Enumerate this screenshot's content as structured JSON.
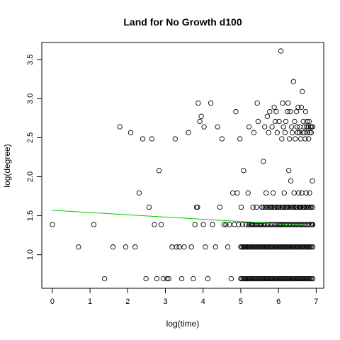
{
  "chart_data": {
    "type": "scatter",
    "title": "Land for No Growth d100",
    "xlabel": "log(time)",
    "ylabel": "log(degree)",
    "xlim": [
      -0.28,
      7.2
    ],
    "ylim": [
      0.57,
      3.72
    ],
    "x_ticks": [
      0,
      1,
      2,
      3,
      4,
      5,
      6,
      7
    ],
    "y_ticks": [
      1.0,
      1.5,
      2.0,
      2.5,
      3.0,
      3.5
    ],
    "y_tick_labels": [
      "1.0",
      "1.5",
      "2.0",
      "2.5",
      "3.0",
      "3.5"
    ],
    "point_style": "open-circle",
    "point_color": "#000000",
    "grid": false,
    "trend_line": {
      "color": "#00cc00",
      "x": [
        0,
        6.91
      ],
      "y": [
        1.57,
        1.37
      ]
    },
    "series": [
      {
        "points": [
          [
            0.0,
            1.386
          ],
          [
            0.693,
            1.099
          ],
          [
            1.099,
            1.386
          ],
          [
            1.386,
            0.693
          ],
          [
            1.609,
            1.099
          ],
          [
            1.792,
            2.639
          ],
          [
            1.946,
            1.099
          ],
          [
            2.079,
            2.565
          ],
          [
            2.197,
            1.099
          ],
          [
            2.303,
            1.792
          ],
          [
            2.398,
            2.485
          ],
          [
            2.485,
            0.693
          ],
          [
            2.565,
            1.609
          ],
          [
            2.639,
            2.485
          ],
          [
            2.708,
            1.386
          ],
          [
            2.773,
            0.693
          ],
          [
            2.833,
            2.079
          ],
          [
            2.89,
            1.386
          ],
          [
            2.944,
            0.693
          ],
          [
            3.045,
            0.693
          ],
          [
            3.091,
            0.693
          ],
          [
            3.178,
            1.099
          ],
          [
            3.258,
            2.485
          ],
          [
            3.296,
            1.099
          ],
          [
            3.367,
            1.099
          ],
          [
            3.434,
            0.693
          ],
          [
            3.497,
            1.099
          ],
          [
            3.611,
            2.565
          ],
          [
            3.689,
            1.099
          ],
          [
            3.738,
            0.693
          ],
          [
            3.784,
            1.386
          ],
          [
            3.829,
            1.609
          ],
          [
            3.85,
            1.609
          ],
          [
            3.871,
            2.944
          ],
          [
            3.912,
            2.708
          ],
          [
            3.951,
            2.773
          ],
          [
            4.007,
            1.386
          ],
          [
            4.025,
            2.639
          ],
          [
            4.06,
            1.099
          ],
          [
            4.127,
            0.693
          ],
          [
            4.205,
            2.944
          ],
          [
            4.248,
            1.386
          ],
          [
            4.331,
            1.099
          ],
          [
            4.382,
            2.639
          ],
          [
            4.443,
            1.609
          ],
          [
            4.5,
            2.485
          ],
          [
            4.554,
            1.386
          ],
          [
            4.605,
            1.386
          ],
          [
            4.654,
            1.099
          ],
          [
            4.7,
            1.386
          ],
          [
            4.745,
            0.693
          ],
          [
            4.787,
            1.792
          ],
          [
            4.828,
            1.386
          ],
          [
            4.868,
            2.833
          ],
          [
            4.905,
            1.792
          ],
          [
            4.942,
            1.386
          ],
          [
            4.977,
            2.485
          ],
          [
            5.011,
            1.609
          ],
          [
            5.043,
            1.386
          ],
          [
            5.075,
            2.079
          ],
          [
            5.106,
            1.099
          ],
          [
            5.136,
            1.386
          ],
          [
            5.193,
            1.792
          ],
          [
            5.22,
            2.639
          ],
          [
            5.298,
            1.386
          ],
          [
            5.323,
            1.609
          ],
          [
            5.347,
            2.565
          ],
          [
            5.416,
            1.609
          ],
          [
            5.438,
            2.944
          ],
          [
            5.46,
            2.708
          ],
          [
            5.521,
            1.386
          ],
          [
            5.561,
            1.609
          ],
          [
            5.598,
            2.197
          ],
          [
            5.635,
            2.639
          ],
          [
            5.67,
            1.792
          ],
          [
            5.704,
            2.773
          ],
          [
            5.737,
            2.565
          ],
          [
            5.768,
            2.833
          ],
          [
            5.799,
            1.609
          ],
          [
            5.829,
            2.639
          ],
          [
            5.858,
            1.792
          ],
          [
            5.886,
            2.89
          ],
          [
            5.914,
            2.708
          ],
          [
            5.94,
            2.833
          ],
          [
            5.966,
            2.565
          ],
          [
            5.991,
            1.609
          ],
          [
            6.016,
            2.708
          ],
          [
            6.04,
            1.386
          ],
          [
            6.064,
            3.611
          ],
          [
            6.087,
            2.485
          ],
          [
            6.109,
            2.944
          ],
          [
            6.131,
            2.639
          ],
          [
            6.153,
            1.792
          ],
          [
            6.174,
            2.565
          ],
          [
            6.194,
            2.708
          ],
          [
            6.215,
            1.609
          ],
          [
            6.234,
            2.833
          ],
          [
            6.254,
            2.944
          ],
          [
            6.273,
            2.079
          ],
          [
            6.292,
            2.485
          ],
          [
            6.31,
            2.833
          ],
          [
            6.328,
            1.946
          ],
          [
            6.346,
            2.639
          ],
          [
            6.363,
            2.565
          ],
          [
            6.38,
            1.609
          ],
          [
            6.397,
            3.219
          ],
          [
            6.413,
            1.792
          ],
          [
            6.43,
            2.708
          ],
          [
            6.446,
            2.485
          ],
          [
            6.461,
            1.609
          ],
          [
            6.477,
            2.833
          ],
          [
            6.492,
            2.639
          ],
          [
            6.507,
            2.565
          ],
          [
            6.522,
            2.89
          ],
          [
            6.536,
            1.792
          ],
          [
            6.551,
            2.565
          ],
          [
            6.565,
            2.639
          ],
          [
            6.579,
            1.609
          ],
          [
            6.592,
            2.485
          ],
          [
            6.606,
            2.89
          ],
          [
            6.619,
            1.792
          ],
          [
            6.633,
            3.091
          ],
          [
            6.646,
            2.565
          ],
          [
            6.659,
            2.708
          ],
          [
            6.671,
            1.609
          ],
          [
            6.684,
            2.639
          ],
          [
            6.696,
            2.565
          ],
          [
            6.708,
            2.485
          ],
          [
            6.721,
            2.833
          ],
          [
            6.733,
            1.792
          ],
          [
            6.745,
            2.639
          ],
          [
            6.757,
            2.708
          ],
          [
            6.768,
            2.565
          ],
          [
            6.78,
            1.609
          ],
          [
            6.791,
            2.639
          ],
          [
            6.802,
            2.485
          ],
          [
            6.813,
            2.708
          ],
          [
            6.824,
            1.792
          ],
          [
            6.835,
            2.565
          ],
          [
            6.846,
            2.639
          ],
          [
            6.857,
            1.609
          ],
          [
            6.868,
            2.565
          ],
          [
            6.878,
            2.639
          ],
          [
            6.889,
            1.386
          ],
          [
            6.9,
            1.946
          ],
          [
            6.905,
            2.639
          ]
        ],
        "dense_rows": [
          {
            "y": 0.693,
            "x_range": [
              5.0,
              6.91
            ],
            "count": 60
          },
          {
            "y": 1.099,
            "x_range": [
              5.0,
              6.91
            ],
            "count": 60
          },
          {
            "y": 1.386,
            "x_range": [
              5.2,
              6.91
            ],
            "count": 45
          },
          {
            "y": 1.609,
            "x_range": [
              5.6,
              6.91
            ],
            "count": 30
          }
        ]
      }
    ]
  }
}
